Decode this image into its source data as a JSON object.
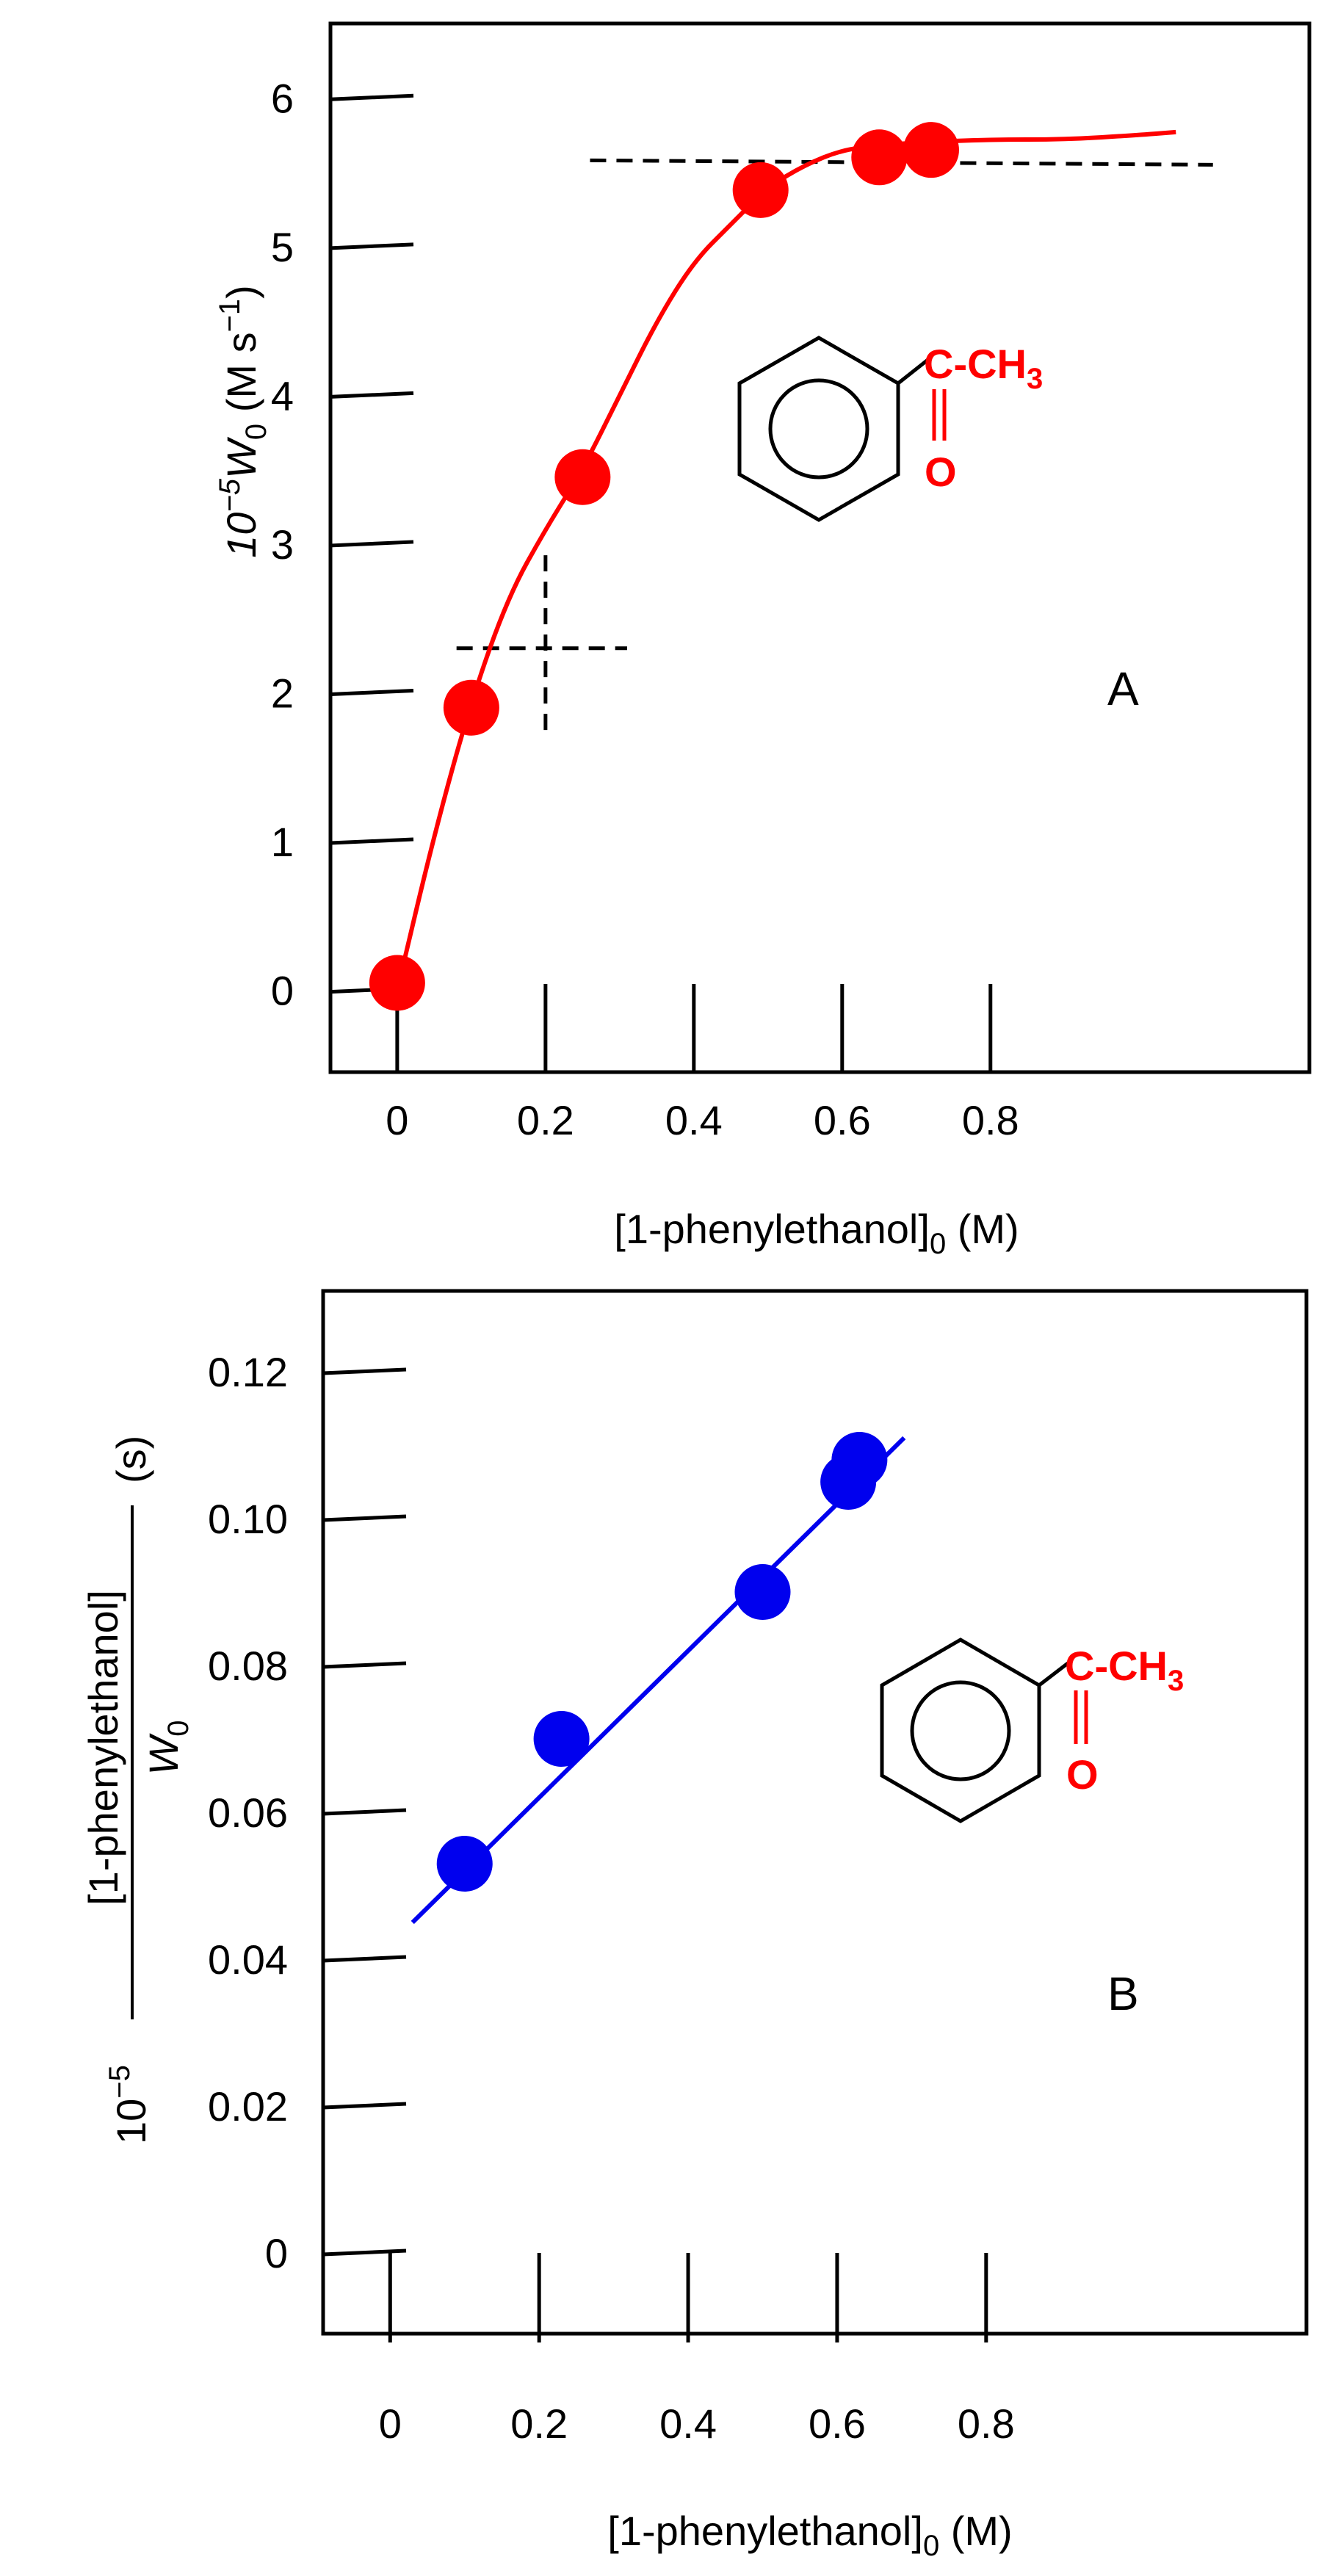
{
  "colors": {
    "panel_a_series": "#ff0000",
    "panel_b_series": "#0000ee",
    "structure_ring": "#000000",
    "substituent": "#ff0000",
    "guide_lines": "#000000"
  },
  "chart_data": [
    {
      "panel": "A",
      "type": "scatter",
      "panel_label": "A",
      "xlabel": "[1-phenylethanol]",
      "xlabel_sub": "0",
      "xlabel_unit": " (M)",
      "ylabel_prefix": "10",
      "ylabel_exp": "−5",
      "ylabel_var": "W",
      "ylabel_sub": "0",
      "ylabel_unit_open": " (M s",
      "ylabel_unit_exp": "−1",
      "ylabel_unit_close": ")",
      "xlim": [
        -0.09,
        1.23
      ],
      "ylim": [
        -0.55,
        6.5
      ],
      "xticks": [
        0,
        0.2,
        0.4,
        0.6,
        0.8
      ],
      "xtick_labels": [
        "0",
        "0.2",
        "0.4",
        "0.6",
        "0.8"
      ],
      "yticks": [
        0,
        1,
        2,
        3,
        4,
        5,
        6
      ],
      "ytick_labels": [
        "0",
        "1",
        "2",
        "3",
        "4",
        "5",
        "6"
      ],
      "grid": false,
      "series": [
        {
          "x": [
            0.0,
            0.1,
            0.25,
            0.49,
            0.65,
            0.72
          ],
          "y": [
            0.05,
            1.9,
            3.45,
            5.38,
            5.6,
            5.65
          ],
          "color": "#ff0000"
        }
      ],
      "fit_curve": {
        "x": [
          0.0,
          0.05,
          0.1,
          0.15,
          0.2,
          0.25,
          0.3,
          0.35,
          0.4,
          0.45,
          0.5,
          0.55,
          0.6,
          0.65,
          0.7,
          0.8,
          0.9,
          1.0,
          1.05
        ],
        "y": [
          0.0,
          1.05,
          1.95,
          2.65,
          3.1,
          3.5,
          4.0,
          4.5,
          4.9,
          5.15,
          5.4,
          5.55,
          5.65,
          5.68,
          5.7,
          5.72,
          5.72,
          5.75,
          5.77
        ],
        "color": "#ff0000"
      },
      "guides": [
        {
          "style": "dashed",
          "x": [
            0.26,
            1.1
          ],
          "y": [
            5.58,
            5.55
          ]
        },
        {
          "style": "dashed",
          "x": [
            0.08,
            0.31
          ],
          "y": [
            2.3,
            2.3
          ]
        },
        {
          "style": "dashed",
          "x": [
            0.2,
            0.2
          ],
          "y": [
            1.75,
            2.95
          ]
        }
      ],
      "structure": {
        "substituent_top": "C-CH",
        "substituent_top_sub": "3",
        "carbonyl_o": "O"
      }
    },
    {
      "panel": "B",
      "type": "scatter",
      "panel_label": "B",
      "xlabel": "[1-phenylethanol]",
      "xlabel_sub": "0",
      "xlabel_unit": " (M)",
      "ylabel_prefix": "10",
      "ylabel_exp": "−5",
      "ylabel_numerator": "[1-phenylethanol]",
      "ylabel_den_var": "W",
      "ylabel_den_sub": "0",
      "ylabel_unit": "(s)",
      "xlim": [
        -0.09,
        1.23
      ],
      "ylim": [
        -0.011,
        0.131
      ],
      "xticks": [
        0,
        0.2,
        0.4,
        0.6,
        0.8
      ],
      "xtick_labels": [
        "0",
        "0.2",
        "0.4",
        "0.6",
        "0.8"
      ],
      "yticks": [
        0,
        0.02,
        0.04,
        0.06,
        0.08,
        0.1,
        0.12
      ],
      "ytick_labels": [
        "0",
        "0.02",
        "0.04",
        "0.06",
        "0.08",
        "0.10",
        "0.12"
      ],
      "grid": false,
      "series": [
        {
          "x": [
            0.1,
            0.23,
            0.5,
            0.615,
            0.63
          ],
          "y": [
            0.053,
            0.07,
            0.09,
            0.105,
            0.108
          ],
          "color": "#0000ee"
        }
      ],
      "fit_line": {
        "x": [
          0.03,
          0.69
        ],
        "y": [
          0.045,
          0.111
        ],
        "color": "#0000ee"
      },
      "structure": {
        "substituent_top": "C-CH",
        "substituent_top_sub": "3",
        "carbonyl_o": "O"
      }
    }
  ]
}
